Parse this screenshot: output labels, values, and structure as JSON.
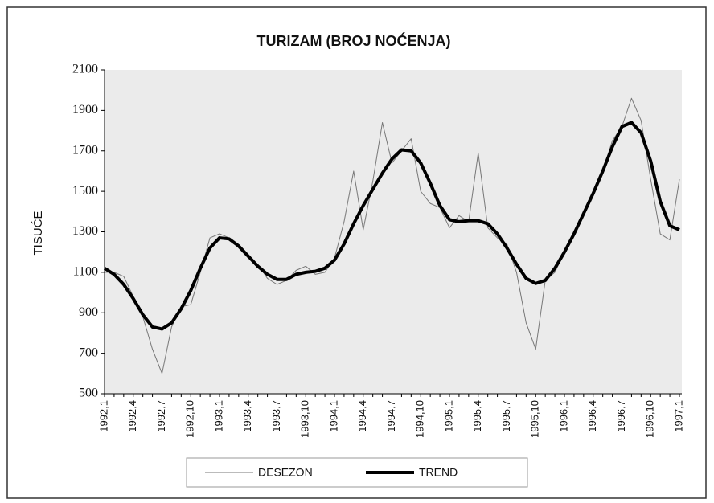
{
  "chart_data": {
    "type": "line",
    "title": "TURIZAM (BROJ NOĆENJA)",
    "y_label": "TISUĆE",
    "categories": [
      "1992,1",
      null,
      null,
      "1992,4",
      null,
      null,
      "1992,7",
      null,
      null,
      "1992,10",
      null,
      null,
      "1993,1",
      null,
      null,
      "1993,4",
      null,
      null,
      "1993,7",
      null,
      null,
      "1993,10",
      null,
      null,
      "1994,1",
      null,
      null,
      "1994,4",
      null,
      null,
      "1994,7",
      null,
      null,
      "1994,10",
      null,
      null,
      "1995,1",
      null,
      null,
      "1995,4",
      null,
      null,
      "1995,7",
      null,
      null,
      "1995,10",
      null,
      null,
      "1996,1",
      null,
      null,
      "1996,4",
      null,
      null,
      "1996,7",
      null,
      null,
      "1996,10",
      null,
      null,
      "1997,1"
    ],
    "series": [
      {
        "name": "DESEZON",
        "color": "#777777",
        "width": 1,
        "values": [
          1100,
          1100,
          1080,
          980,
          880,
          720,
          600,
          830,
          930,
          940,
          1100,
          1270,
          1290,
          1270,
          1220,
          1170,
          1140,
          1070,
          1040,
          1060,
          1110,
          1130,
          1090,
          1100,
          1170,
          1350,
          1600,
          1310,
          1550,
          1840,
          1640,
          1700,
          1760,
          1500,
          1440,
          1420,
          1320,
          1380,
          1350,
          1690,
          1320,
          1270,
          1240,
          1100,
          850,
          720,
          1060,
          1100,
          1200,
          1280,
          1380,
          1480,
          1600,
          1750,
          1820,
          1960,
          1850,
          1560,
          1290,
          1260,
          1560
        ]
      },
      {
        "name": "TREND",
        "color": "#000000",
        "width": 4,
        "values": [
          1120,
          1090,
          1040,
          970,
          890,
          830,
          820,
          850,
          920,
          1010,
          1120,
          1220,
          1270,
          1265,
          1230,
          1180,
          1130,
          1090,
          1065,
          1065,
          1090,
          1100,
          1105,
          1120,
          1160,
          1240,
          1340,
          1430,
          1510,
          1590,
          1660,
          1705,
          1700,
          1640,
          1540,
          1430,
          1360,
          1350,
          1355,
          1355,
          1340,
          1290,
          1220,
          1140,
          1070,
          1045,
          1060,
          1120,
          1200,
          1290,
          1390,
          1490,
          1600,
          1720,
          1820,
          1840,
          1790,
          1650,
          1450,
          1330,
          1310
        ]
      }
    ],
    "ylim": [
      500,
      2100
    ],
    "yticks": [
      500,
      700,
      900,
      1100,
      1300,
      1500,
      1700,
      1900,
      2100
    ],
    "legend": "bottom",
    "grid": false
  }
}
